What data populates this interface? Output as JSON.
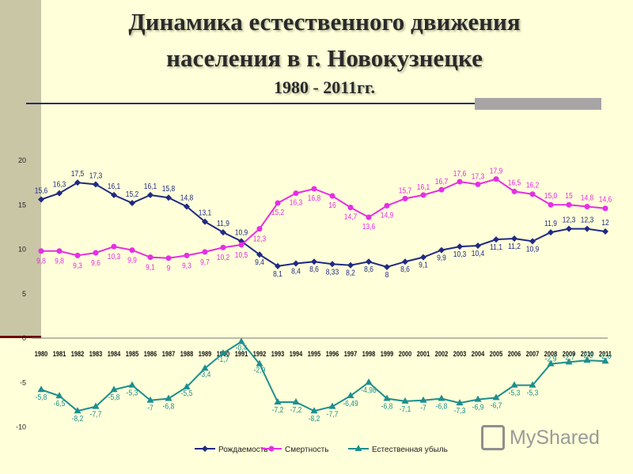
{
  "slide": {
    "title_line1": "Динамика естественного движения",
    "title_line2": "населения в г. Новокузнецке",
    "title_line3": "1980 - 2011гг."
  },
  "watermark": {
    "text": "MyShared",
    "icon": "presentation-icon"
  },
  "colors": {
    "birth": "#1f2a83",
    "death": "#e62ee6",
    "natural": "#1c8f8f"
  },
  "chart_data": {
    "type": "line",
    "title": "Динамика естественного движения населения в г. Новокузнецке 1980 - 2011гг.",
    "categories": [
      "1980",
      "1981",
      "1982",
      "1983",
      "1984",
      "1985",
      "1986",
      "1987",
      "1988",
      "1989",
      "1990",
      "1991",
      "1992",
      "1993",
      "1994",
      "1995",
      "1996",
      "1997",
      "1998",
      "1999",
      "2000",
      "2001",
      "2002",
      "2003",
      "2004",
      "2005",
      "2006",
      "2007",
      "2008",
      "2009",
      "2010",
      "2011"
    ],
    "yticks": [
      "20",
      "15",
      "10",
      "5",
      "0",
      "-5",
      "-10"
    ],
    "ylim": [
      -10,
      20
    ],
    "legend_position": "bottom",
    "series": [
      {
        "name": "Рождаемость",
        "color": "#1f2a83",
        "marker": "diamond",
        "values": [
          15.6,
          16.3,
          17.5,
          17.3,
          16.1,
          15.2,
          16.1,
          15.8,
          14.8,
          13.1,
          11.9,
          10.9,
          9.4,
          8.1,
          8.4,
          8.6,
          8.33,
          8.2,
          8.6,
          8,
          8.6,
          9.1,
          9.9,
          10.3,
          10.4,
          11.1,
          11.2,
          10.9,
          11.9,
          12.3,
          12.3,
          12
        ],
        "labels": [
          "15,6",
          "16,3",
          "17,5",
          "17,3",
          "16,1",
          "15,2",
          "16,1",
          "15,8",
          "14,8",
          "13,1",
          "11,9",
          "10,9",
          "9,4",
          "8,1",
          "8,4",
          "8,6",
          "8,33",
          "8,2",
          "8,6",
          "8",
          "8,6",
          "9,1",
          "9,9",
          "10,3",
          "10,4",
          "11,1",
          "11,2",
          "10,9",
          "11,9",
          "12,3",
          "12,3",
          "12"
        ]
      },
      {
        "name": "Смертность",
        "color": "#e62ee6",
        "marker": "circle",
        "values": [
          9.8,
          9.8,
          9.3,
          9.6,
          10.3,
          9.9,
          9.1,
          9,
          9.3,
          9.7,
          10.2,
          10.5,
          12.3,
          15.2,
          16.3,
          16.8,
          16,
          14.7,
          13.6,
          14.9,
          15.7,
          16.1,
          16.7,
          17.6,
          17.3,
          17.9,
          16.5,
          16.2,
          15,
          15,
          14.8,
          14.6
        ],
        "labels": [
          "9,8",
          "9,8",
          "9,3",
          "9,6",
          "10,3",
          "9,9",
          "9,1",
          "9",
          "9,3",
          "9,7",
          "10,2",
          "10,5",
          "12,3",
          "15,2",
          "16,3",
          "16,8",
          "16",
          "14,7",
          "13,6",
          "14,9",
          "15,7",
          "16,1",
          "16,7",
          "17,6",
          "17,3",
          "17,9",
          "16,5",
          "16,2",
          "15,0",
          "15",
          "14,8",
          "14,6"
        ]
      },
      {
        "name": "Естественная убыль",
        "color": "#1c8f8f",
        "marker": "triangle",
        "values": [
          -5.8,
          -6.5,
          -8.2,
          -7.7,
          -5.8,
          -5.3,
          -7,
          -6.8,
          -5.5,
          -3.4,
          -1.7,
          -0.4,
          -2.9,
          -7.2,
          -7.2,
          -8.2,
          -7.7,
          -6.49,
          -4.98,
          -6.8,
          -7.1,
          -7,
          -6.8,
          -7.3,
          -6.9,
          -6.7,
          -5.3,
          -5.3,
          -2.9,
          -2.7,
          -2.5,
          -2.6
        ],
        "labels": [
          "-5,8",
          "-6,5",
          "-8,2",
          "-7,7",
          "-5,8",
          "-5,3",
          "-7",
          "-6,8",
          "-5,5",
          "-3,4",
          "-1,7",
          "-0,4",
          "-2,9",
          "-7,2",
          "-7,2",
          "-8,2",
          "-7,7",
          "-6,49",
          "-4,98",
          "-6,8",
          "-7,1",
          "-7",
          "-6,8",
          "-7,3",
          "-6,9",
          "-6,7",
          "-5,3",
          "-5,3",
          "-2,9",
          "-2,7",
          "-2,5",
          "-2,6"
        ]
      }
    ]
  }
}
